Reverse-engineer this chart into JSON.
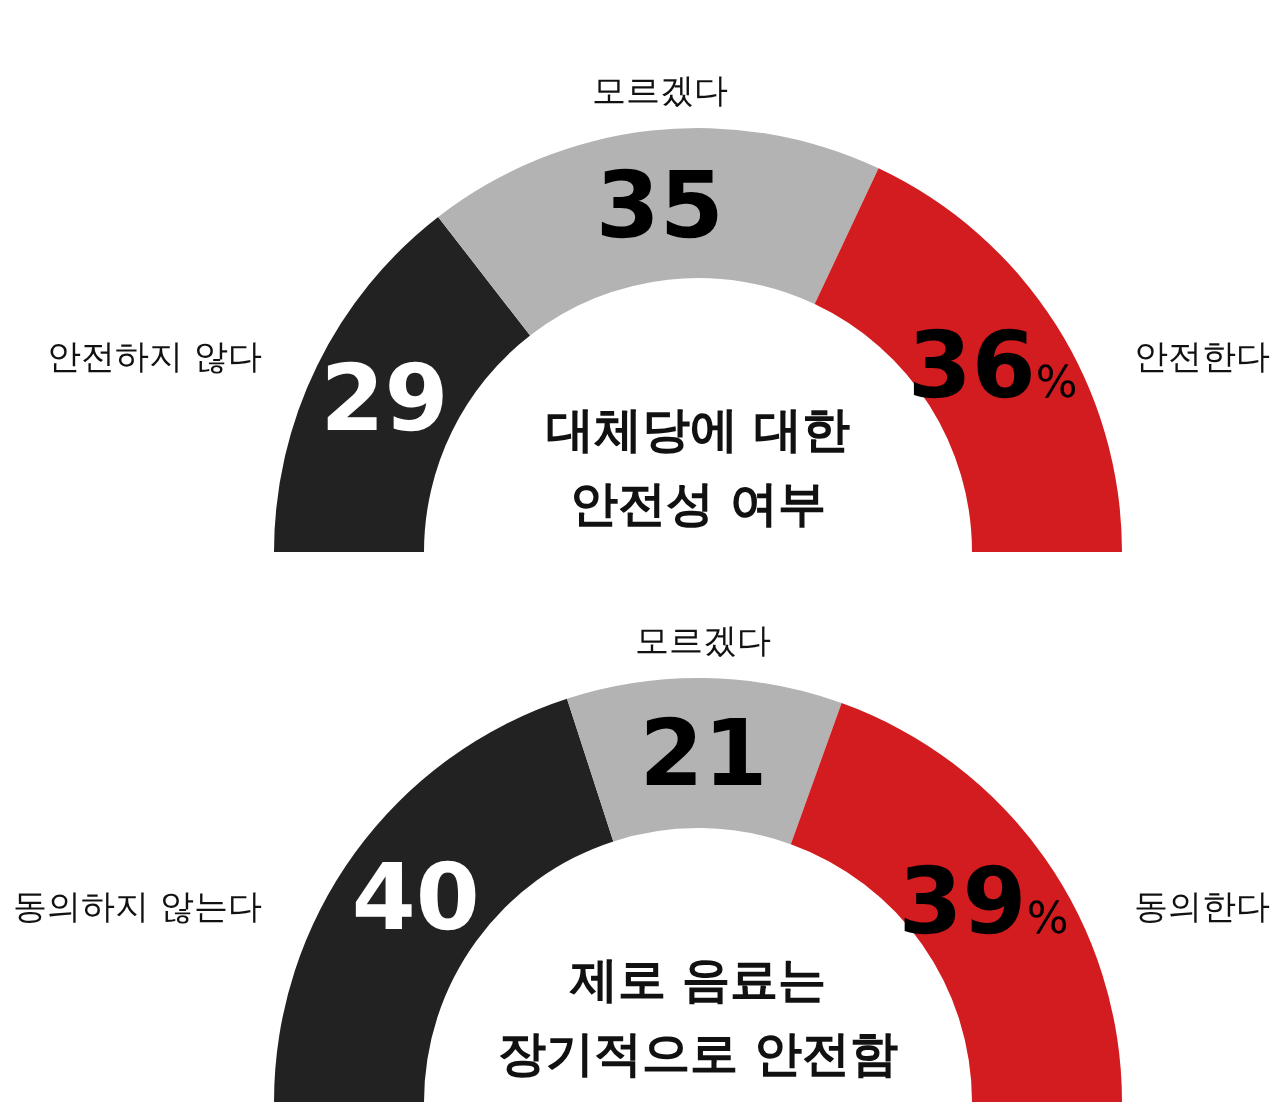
{
  "chart_data": [
    {
      "type": "donut",
      "title": "대체당에 대한\n안전성 여부",
      "categories": [
        "안전하지 않다",
        "모르겠다",
        "안전한다"
      ],
      "values": [
        29,
        35,
        36
      ],
      "colors": [
        "#222222",
        "#b3b3b3",
        "#d31c1f"
      ],
      "value_labels": [
        "29",
        "35",
        "36%"
      ]
    },
    {
      "type": "donut",
      "title": "제로 음료는\n장기적으로 안전함",
      "categories": [
        "동의하지 않는다",
        "모르겠다",
        "동의한다"
      ],
      "values": [
        40,
        21,
        39
      ],
      "colors": [
        "#222222",
        "#b3b3b3",
        "#d31c1f"
      ],
      "value_labels": [
        "40",
        "21",
        "39%"
      ]
    }
  ]
}
